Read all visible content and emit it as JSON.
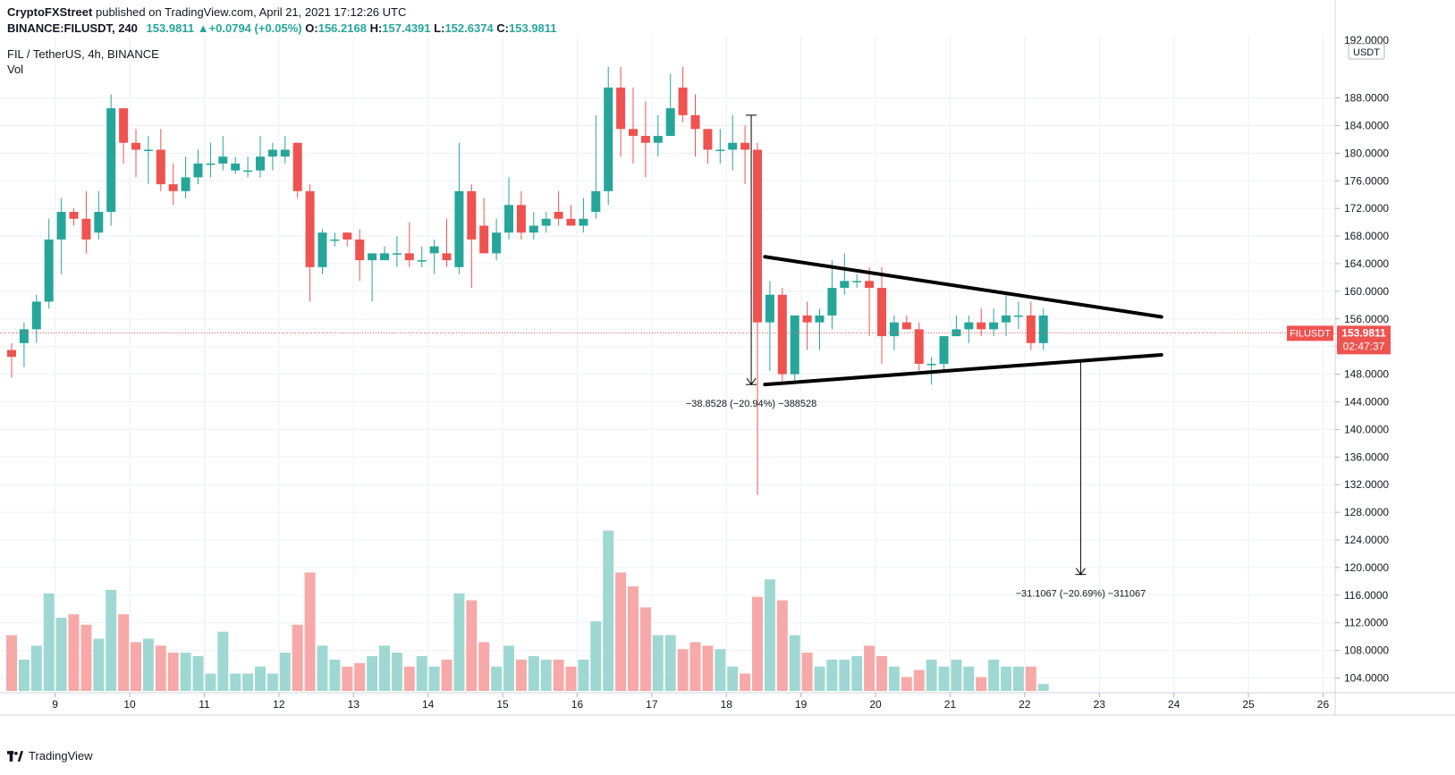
{
  "header": {
    "publisher": "CryptoFXStreet",
    "published_text": "published on TradingView.com, April 21, 2021 17:12:26 UTC",
    "symbol_full": "BINANCE:FILUSDT, 240",
    "last": "153.9811",
    "change": "+0.0794 (+0.05%)",
    "open_label": "O:",
    "open": "156.2168",
    "high_label": "H:",
    "high": "157.4391",
    "low_label": "L:",
    "low": "152.6374",
    "close_label": "C:",
    "close": "153.9811",
    "title": "FIL / TetherUS, 4h, BINANCE",
    "vol_label": "Vol"
  },
  "footer": {
    "brand": "TradingView"
  },
  "colors": {
    "up": "#26a69a",
    "down": "#ef5350",
    "vol_up": "#9fd8d2",
    "vol_down": "#f6a9a8",
    "price_tag": "#ef5350",
    "grid": "#eef0f3",
    "line": "#000000"
  },
  "chart_data": {
    "type": "candlestick",
    "title": "FIL / TetherUS, 4h, BINANCE",
    "currency": "USDT",
    "ylim": [
      102,
      197
    ],
    "price_ticks": [
      104,
      108,
      112,
      116,
      120,
      124,
      128,
      132,
      136,
      140,
      144,
      148,
      152,
      156,
      160,
      164,
      168,
      172,
      176,
      180,
      184,
      188
    ],
    "top_tick": "192.0000",
    "x_ticks": [
      {
        "label": "9",
        "i": 3.5
      },
      {
        "label": "10",
        "i": 9.5
      },
      {
        "label": "11",
        "i": 15.5
      },
      {
        "label": "12",
        "i": 21.5
      },
      {
        "label": "13",
        "i": 27.5
      },
      {
        "label": "14",
        "i": 33.5
      },
      {
        "label": "15",
        "i": 39.5
      },
      {
        "label": "16",
        "i": 45.5
      },
      {
        "label": "17",
        "i": 51.5
      },
      {
        "label": "18",
        "i": 57.5
      },
      {
        "label": "19",
        "i": 63.5
      },
      {
        "label": "20",
        "i": 69.5
      },
      {
        "label": "21",
        "i": 75.5
      },
      {
        "label": "22",
        "i": 81.5
      },
      {
        "label": "23",
        "i": 87.5
      },
      {
        "label": "24",
        "i": 93.5
      },
      {
        "label": "25",
        "i": 99.5
      },
      {
        "label": "26",
        "i": 105.5
      }
    ],
    "candles": [
      [
        151.5,
        152.5,
        147.5,
        150.5,
        8
      ],
      [
        152.5,
        155.5,
        149,
        154.5,
        4.5
      ],
      [
        154.5,
        159.5,
        152.5,
        158.5,
        6.5
      ],
      [
        158.5,
        170.5,
        157.5,
        167.5,
        14
      ],
      [
        167.5,
        173.5,
        162.5,
        171.5,
        10.5
      ],
      [
        171.5,
        172,
        169.5,
        170.5,
        11
      ],
      [
        170.5,
        174.5,
        165.5,
        167.5,
        9.5
      ],
      [
        168.5,
        174.5,
        167.5,
        171.5,
        7.5
      ],
      [
        171.5,
        188.5,
        169.5,
        186.5,
        14.5
      ],
      [
        186.5,
        186.5,
        178.5,
        181.5,
        11
      ],
      [
        181.5,
        183.5,
        176.5,
        180.5,
        7
      ],
      [
        180.5,
        182.5,
        175.5,
        180.5,
        7.5
      ],
      [
        180.5,
        183.5,
        174.5,
        175.5,
        6.5
      ],
      [
        175.5,
        178.5,
        172.5,
        174.5,
        5.5
      ],
      [
        174.5,
        179.5,
        173.5,
        176.5,
        5.5
      ],
      [
        176.5,
        180.5,
        175.5,
        178.5,
        5
      ],
      [
        178.5,
        181.5,
        176.5,
        178.5,
        2.5
      ],
      [
        178.5,
        182.5,
        177.5,
        179.5,
        8.5
      ],
      [
        177.5,
        179.5,
        177,
        178.5,
        2.5
      ],
      [
        177.5,
        179.5,
        176.5,
        177.5,
        2.5
      ],
      [
        177.5,
        182.5,
        176.5,
        179.5,
        3.5
      ],
      [
        179.5,
        181.5,
        177.5,
        180.5,
        2.5
      ],
      [
        179.5,
        182.5,
        178.5,
        180.5,
        5.5
      ],
      [
        181.5,
        181.5,
        173.5,
        174.5,
        9.5
      ],
      [
        174.5,
        175.5,
        158.5,
        163.5,
        17
      ],
      [
        163.5,
        169,
        162.5,
        168.5,
        6.5
      ],
      [
        167.5,
        168.5,
        166.5,
        167.5,
        4.5
      ],
      [
        168.5,
        168.5,
        166.5,
        167.5,
        3.5
      ],
      [
        167.5,
        169,
        161.5,
        164.5,
        4
      ],
      [
        164.5,
        165.5,
        158.5,
        165.5,
        5
      ],
      [
        164.5,
        166.5,
        164.5,
        165.5,
        6.5
      ],
      [
        165.5,
        168,
        163.5,
        165.5,
        5.5
      ],
      [
        165.5,
        170,
        163.5,
        164.5,
        3.5
      ],
      [
        164.5,
        166.5,
        163.5,
        164.5,
        5
      ],
      [
        165.5,
        167.5,
        162.5,
        166.5,
        3.5
      ],
      [
        165.5,
        170.5,
        163.5,
        164.5,
        4.5
      ],
      [
        163.5,
        181.5,
        162.5,
        174.5,
        14
      ],
      [
        174.5,
        175.5,
        160.5,
        167.5,
        13
      ],
      [
        169.5,
        173.5,
        165.5,
        165.5,
        7
      ],
      [
        165.5,
        170.5,
        164.5,
        168.5,
        3.5
      ],
      [
        168.5,
        176.5,
        167.5,
        172.5,
        6.5
      ],
      [
        172.5,
        174.5,
        167.5,
        168.5,
        4.5
      ],
      [
        168.5,
        171.5,
        167.5,
        169.5,
        5
      ],
      [
        169.5,
        171.5,
        168.5,
        170.5,
        4.5
      ],
      [
        171.5,
        174.5,
        169.5,
        170.5,
        4.5
      ],
      [
        170.5,
        172.5,
        169.5,
        169.5,
        3.5
      ],
      [
        169.5,
        173.5,
        168.5,
        170.5,
        4.5
      ],
      [
        171.5,
        185.5,
        170.5,
        174.5,
        10
      ],
      [
        174.5,
        192.5,
        172.5,
        189.5,
        23
      ],
      [
        189.5,
        192.5,
        179.5,
        183.5,
        17
      ],
      [
        183.5,
        189.5,
        178.5,
        182.5,
        15
      ],
      [
        182.5,
        187.5,
        176.5,
        181.5,
        12
      ],
      [
        181.5,
        185.5,
        179.5,
        182.5,
        8
      ],
      [
        182.5,
        191.5,
        182.5,
        186.5,
        8
      ],
      [
        189.5,
        192.5,
        184.5,
        185.5,
        6
      ],
      [
        185.5,
        188.5,
        179.5,
        183.5,
        7
      ],
      [
        183.5,
        183.5,
        178.5,
        180.5,
        6.5
      ],
      [
        180.5,
        183.5,
        178.5,
        180.5,
        6
      ],
      [
        180.5,
        185.5,
        177.5,
        181.5,
        3.5
      ],
      [
        181.5,
        184,
        175.5,
        180.5,
        2.5
      ],
      [
        180.5,
        181.5,
        130.5,
        155.5,
        13.5
      ],
      [
        155.5,
        161.5,
        148.5,
        159.5,
        16
      ],
      [
        159.5,
        160.5,
        147,
        148,
        13
      ],
      [
        148,
        156.5,
        147,
        156.5,
        8
      ],
      [
        156.5,
        158.5,
        151.5,
        155.5,
        5.5
      ],
      [
        155.5,
        157.5,
        151.5,
        156.5,
        3.5
      ],
      [
        156.5,
        164.5,
        154.5,
        160.5,
        4.5
      ],
      [
        160.5,
        165.5,
        159.5,
        161.5,
        4.5
      ],
      [
        161.5,
        162.5,
        160.5,
        161.5,
        5
      ],
      [
        161.5,
        163.5,
        153.5,
        160.5,
        6.5
      ],
      [
        160.5,
        163.5,
        149.5,
        153.5,
        5
      ],
      [
        153.5,
        156.5,
        151.5,
        155.5,
        3.5
      ],
      [
        155.5,
        156.5,
        154.5,
        154.5,
        2
      ],
      [
        154.5,
        155.5,
        148.5,
        149.5,
        3
      ],
      [
        149.5,
        150.5,
        146.5,
        149.5,
        4.5
      ],
      [
        149.5,
        153.5,
        148.5,
        153.5,
        3.5
      ],
      [
        153.5,
        156.5,
        153.5,
        154.5,
        4.5
      ],
      [
        154.5,
        156.5,
        152.5,
        155.5,
        3.5
      ],
      [
        155.5,
        157.5,
        153.5,
        154.5,
        2
      ],
      [
        154.5,
        157.5,
        153.5,
        155.5,
        4.5
      ],
      [
        155.5,
        159.5,
        153.5,
        156.5,
        3.5
      ],
      [
        156.5,
        158.5,
        154.5,
        156.5,
        3.5
      ],
      [
        156.5,
        158.5,
        151.5,
        152.5,
        3.5
      ],
      [
        152.5,
        157.5,
        151.5,
        156.5,
        1
      ]
    ],
    "triangle": {
      "upper": [
        [
          60.6,
          165
        ],
        [
          92.5,
          156.3
        ]
      ],
      "lower": [
        [
          60.6,
          146.5
        ],
        [
          92.5,
          150.8
        ]
      ]
    },
    "measure_1": {
      "i": 59.5,
      "from": 185.5,
      "to": 146.5,
      "label": "−38.8528 (−20.94%) −388528"
    },
    "measure_2": {
      "i": 86.0,
      "from": 149.8,
      "to": 119,
      "label": "−31.1067 (−20.69%) −311067"
    },
    "last_price": {
      "value": 153.9811,
      "symbol": "FILUSDT",
      "price_label": "153.9811",
      "countdown": "02:47:37"
    }
  }
}
